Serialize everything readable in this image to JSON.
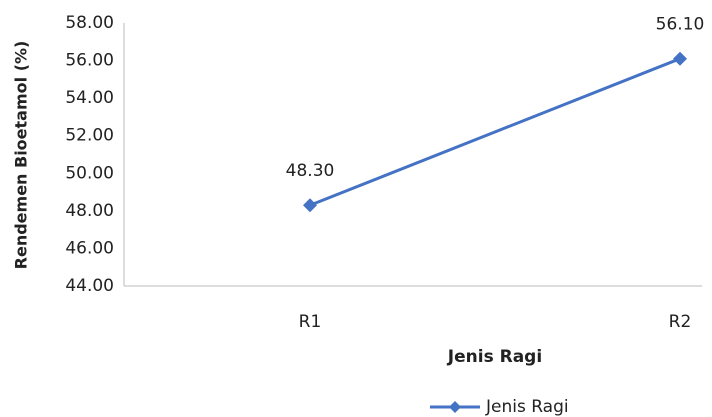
{
  "chart_data": {
    "type": "line",
    "y_label": "Rendemen Bioetamol (%)",
    "x_label": "Jenis Ragi",
    "categories": [
      "R1",
      "R2"
    ],
    "series": [
      {
        "name": "Jenis Ragi",
        "color": "#4472c4",
        "values": [
          48.3,
          56.1
        ],
        "value_labels": [
          "48.30",
          "56.10"
        ]
      }
    ],
    "ylim": [
      44,
      58
    ],
    "yticks": [
      {
        "value": 44,
        "label": "44.00"
      },
      {
        "value": 46,
        "label": "46.00"
      },
      {
        "value": 48,
        "label": "48.00"
      },
      {
        "value": 50,
        "label": "50.00"
      },
      {
        "value": 52,
        "label": "52.00"
      },
      {
        "value": 54,
        "label": "54.00"
      },
      {
        "value": 56,
        "label": "56.00"
      },
      {
        "value": 58,
        "label": "58.00"
      }
    ],
    "grid": false,
    "legend": "bottom-right"
  }
}
